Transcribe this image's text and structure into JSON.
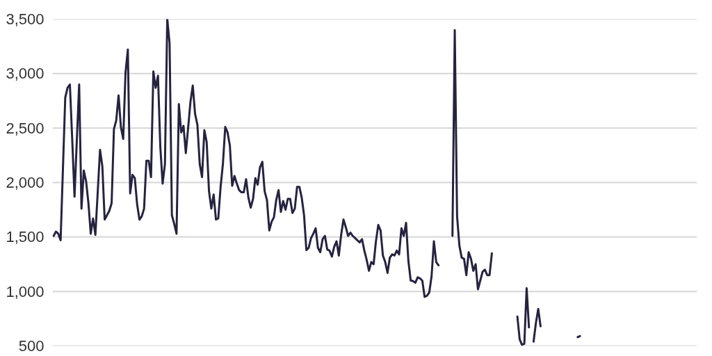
{
  "chart_data": {
    "type": "line",
    "categories": [
      null,
      null,
      null,
      null,
      null,
      null,
      null,
      null,
      null,
      null,
      null,
      null,
      null,
      null,
      null,
      null,
      null,
      null,
      null,
      null,
      null,
      null,
      null,
      null,
      null,
      null,
      null,
      null,
      null,
      null,
      null,
      null,
      null,
      null,
      null,
      null,
      null,
      null,
      null,
      null,
      null,
      null,
      null,
      null,
      null,
      null,
      null,
      null,
      null,
      null,
      null,
      null,
      null,
      null,
      null,
      null,
      null,
      null,
      null,
      null,
      null,
      null,
      null,
      null,
      null,
      null,
      null,
      null,
      null,
      null,
      null,
      null,
      null,
      null,
      null,
      null,
      null,
      null,
      null,
      null,
      null,
      null,
      null,
      null,
      null,
      null,
      null,
      null,
      null,
      null,
      null,
      null,
      null,
      null,
      null,
      null,
      null,
      null,
      null,
      null,
      null,
      null,
      null,
      null,
      null,
      null,
      null,
      null,
      null,
      null,
      null,
      null,
      null,
      null,
      null,
      null,
      null,
      null,
      null,
      null,
      null,
      null,
      null,
      null,
      null,
      null,
      null,
      null,
      null,
      null,
      null,
      null,
      null,
      null,
      null,
      null,
      null,
      null,
      null,
      null,
      null,
      null,
      null,
      null,
      null,
      null,
      null,
      null,
      null,
      null,
      null,
      null,
      null,
      null,
      null,
      null,
      null,
      null,
      null,
      null,
      null,
      null,
      null,
      null,
      null,
      null,
      null,
      null,
      null,
      null,
      null,
      null,
      null,
      null,
      null,
      null,
      null,
      null,
      null,
      null,
      null,
      null,
      null,
      null,
      null,
      null,
      null,
      null,
      null,
      null,
      null,
      null,
      null,
      null,
      null,
      null,
      null,
      null,
      null,
      null,
      null,
      null,
      null,
      null,
      null,
      null,
      null,
      null,
      null,
      null,
      null,
      null,
      null,
      null,
      null,
      null,
      null,
      null,
      null,
      null,
      null,
      null,
      null,
      null,
      null,
      null,
      null,
      null
    ],
    "series": [
      {
        "color": "#262340",
        "values": [
          1510,
          1550,
          1530,
          1470,
          2125,
          2780,
          2870,
          2900,
          2400,
          1870,
          2390,
          2900,
          1760,
          2110,
          2010,
          1810,
          1530,
          1670,
          1520,
          1910,
          2300,
          2150,
          1660,
          1700,
          1740,
          1810,
          2490,
          2570,
          2800,
          2510,
          2400,
          3010,
          3220,
          1900,
          2070,
          2040,
          1800,
          1660,
          1690,
          1760,
          2200,
          2200,
          2050,
          3020,
          2870,
          2980,
          2330,
          1990,
          2170,
          3500,
          3280,
          1700,
          1620,
          1530,
          2720,
          2460,
          2520,
          2270,
          2500,
          2740,
          2890,
          2630,
          2530,
          2170,
          2050,
          2480,
          2370,
          1920,
          1760,
          1890,
          1660,
          1670,
          1960,
          2170,
          2510,
          2460,
          2340,
          1970,
          2060,
          1990,
          1930,
          1910,
          1910,
          2030,
          1860,
          1770,
          1850,
          2040,
          1980,
          2140,
          2190,
          1920,
          1840,
          1560,
          1640,
          1680,
          1840,
          1930,
          1730,
          1830,
          1750,
          1850,
          1850,
          1720,
          1760,
          1960,
          1960,
          1860,
          1700,
          1380,
          1400,
          1490,
          1530,
          1580,
          1400,
          1360,
          1480,
          1510,
          1385,
          1375,
          1320,
          1410,
          1460,
          1330,
          1520,
          1660,
          1590,
          1510,
          1540,
          1510,
          1490,
          1470,
          1450,
          1480,
          1375,
          1290,
          1190,
          1270,
          1250,
          1460,
          1610,
          1560,
          1330,
          1270,
          1170,
          1310,
          1340,
          1330,
          1375,
          1340,
          1580,
          1510,
          1630,
          1280,
          1100,
          1095,
          1080,
          1130,
          1120,
          1100,
          950,
          960,
          990,
          1140,
          1460,
          1270,
          1240,
          null,
          null,
          null,
          null,
          null,
          null,
          null,
          null,
          null,
          null,
          null,
          null,
          null,
          null,
          null,
          null,
          null,
          null,
          null,
          null,
          null,
          null,
          null,
          null,
          null,
          null,
          null,
          null,
          null,
          null,
          null,
          null,
          null,
          null,
          null,
          null,
          null,
          null,
          null,
          null,
          null,
          null,
          null,
          null,
          null,
          null,
          null,
          null,
          null,
          null,
          null,
          null,
          null,
          null,
          null,
          null,
          null,
          null,
          null,
          null,
          null
        ]
      },
      {
        "color": "#262340",
        "values": [
          null,
          null,
          null,
          null,
          null,
          null,
          null,
          null,
          null,
          null,
          null,
          null,
          null,
          null,
          null,
          null,
          null,
          null,
          null,
          null,
          null,
          null,
          null,
          null,
          null,
          null,
          null,
          null,
          null,
          null,
          null,
          null,
          null,
          null,
          null,
          null,
          null,
          null,
          null,
          null,
          null,
          null,
          null,
          null,
          null,
          null,
          null,
          null,
          null,
          null,
          null,
          null,
          null,
          null,
          null,
          null,
          null,
          null,
          null,
          null,
          null,
          null,
          null,
          null,
          null,
          null,
          null,
          null,
          null,
          null,
          null,
          null,
          null,
          null,
          null,
          null,
          null,
          null,
          null,
          null,
          null,
          null,
          null,
          null,
          null,
          null,
          null,
          null,
          null,
          null,
          null,
          null,
          null,
          null,
          null,
          null,
          null,
          null,
          null,
          null,
          null,
          null,
          null,
          null,
          null,
          null,
          null,
          null,
          null,
          null,
          null,
          null,
          null,
          null,
          null,
          null,
          null,
          null,
          null,
          null,
          null,
          null,
          null,
          null,
          null,
          null,
          null,
          null,
          null,
          null,
          null,
          null,
          null,
          null,
          null,
          null,
          null,
          null,
          null,
          null,
          null,
          null,
          null,
          null,
          null,
          null,
          null,
          null,
          null,
          null,
          null,
          null,
          null,
          null,
          null,
          null,
          null,
          null,
          null,
          null,
          null,
          null,
          null,
          null,
          null,
          null,
          null,
          null,
          null,
          null,
          null,
          null,
          1510,
          3400,
          1690,
          1420,
          1310,
          1300,
          1150,
          1360,
          1300,
          1190,
          1250,
          1020,
          1100,
          1180,
          1200,
          1150,
          1150,
          1350,
          null,
          null,
          null,
          null,
          null,
          null,
          null,
          null,
          null,
          null,
          null,
          null,
          null,
          null,
          null,
          null,
          null,
          null,
          null,
          null,
          null,
          null,
          null,
          null,
          null,
          null,
          null,
          null,
          null,
          null,
          null,
          null,
          null,
          null,
          null,
          null,
          null,
          null
        ]
      },
      {
        "color": "#262340",
        "values": [
          null,
          null,
          null,
          null,
          null,
          null,
          null,
          null,
          null,
          null,
          null,
          null,
          null,
          null,
          null,
          null,
          null,
          null,
          null,
          null,
          null,
          null,
          null,
          null,
          null,
          null,
          null,
          null,
          null,
          null,
          null,
          null,
          null,
          null,
          null,
          null,
          null,
          null,
          null,
          null,
          null,
          null,
          null,
          null,
          null,
          null,
          null,
          null,
          null,
          null,
          null,
          null,
          null,
          null,
          null,
          null,
          null,
          null,
          null,
          null,
          null,
          null,
          null,
          null,
          null,
          null,
          null,
          null,
          null,
          null,
          null,
          null,
          null,
          null,
          null,
          null,
          null,
          null,
          null,
          null,
          null,
          null,
          null,
          null,
          null,
          null,
          null,
          null,
          null,
          null,
          null,
          null,
          null,
          null,
          null,
          null,
          null,
          null,
          null,
          null,
          null,
          null,
          null,
          null,
          null,
          null,
          null,
          null,
          null,
          null,
          null,
          null,
          null,
          null,
          null,
          null,
          null,
          null,
          null,
          null,
          null,
          null,
          null,
          null,
          null,
          null,
          null,
          null,
          null,
          null,
          null,
          null,
          null,
          null,
          null,
          null,
          null,
          null,
          null,
          null,
          null,
          null,
          null,
          null,
          null,
          null,
          null,
          null,
          null,
          null,
          null,
          null,
          null,
          null,
          null,
          null,
          null,
          null,
          null,
          null,
          null,
          null,
          null,
          null,
          null,
          null,
          null,
          null,
          null,
          null,
          null,
          null,
          null,
          null,
          null,
          null,
          null,
          null,
          null,
          null,
          null,
          null,
          null,
          null,
          null,
          null,
          null,
          null,
          null,
          null,
          null,
          null,
          null,
          null,
          null,
          null,
          null,
          null,
          null,
          null,
          770,
          560,
          510,
          520,
          1030,
          670,
          null,
          null,
          null,
          null,
          null,
          null,
          null,
          null,
          null,
          null,
          null,
          null,
          null,
          null,
          null,
          null,
          null,
          null,
          null,
          null,
          null,
          null
        ]
      },
      {
        "color": "#262340",
        "values": [
          null,
          null,
          null,
          null,
          null,
          null,
          null,
          null,
          null,
          null,
          null,
          null,
          null,
          null,
          null,
          null,
          null,
          null,
          null,
          null,
          null,
          null,
          null,
          null,
          null,
          null,
          null,
          null,
          null,
          null,
          null,
          null,
          null,
          null,
          null,
          null,
          null,
          null,
          null,
          null,
          null,
          null,
          null,
          null,
          null,
          null,
          null,
          null,
          null,
          null,
          null,
          null,
          null,
          null,
          null,
          null,
          null,
          null,
          null,
          null,
          null,
          null,
          null,
          null,
          null,
          null,
          null,
          null,
          null,
          null,
          null,
          null,
          null,
          null,
          null,
          null,
          null,
          null,
          null,
          null,
          null,
          null,
          null,
          null,
          null,
          null,
          null,
          null,
          null,
          null,
          null,
          null,
          null,
          null,
          null,
          null,
          null,
          null,
          null,
          null,
          null,
          null,
          null,
          null,
          null,
          null,
          null,
          null,
          null,
          null,
          null,
          null,
          null,
          null,
          null,
          null,
          null,
          null,
          null,
          null,
          null,
          null,
          null,
          null,
          null,
          null,
          null,
          null,
          null,
          null,
          null,
          null,
          null,
          null,
          null,
          null,
          null,
          null,
          null,
          null,
          null,
          null,
          null,
          null,
          null,
          null,
          null,
          null,
          null,
          null,
          null,
          null,
          null,
          null,
          null,
          null,
          null,
          null,
          null,
          null,
          null,
          null,
          null,
          null,
          null,
          null,
          null,
          null,
          null,
          null,
          null,
          null,
          null,
          null,
          null,
          null,
          null,
          null,
          null,
          null,
          null,
          null,
          null,
          null,
          null,
          null,
          null,
          null,
          null,
          null,
          null,
          null,
          null,
          null,
          null,
          null,
          null,
          null,
          null,
          null,
          null,
          null,
          null,
          null,
          null,
          null,
          null,
          540,
          710,
          840,
          680,
          null,
          null,
          null,
          null,
          null,
          null,
          null,
          null,
          null,
          null,
          null,
          null,
          null,
          null,
          null,
          null,
          null
        ]
      },
      {
        "color": "#262340",
        "values": [
          null,
          null,
          null,
          null,
          null,
          null,
          null,
          null,
          null,
          null,
          null,
          null,
          null,
          null,
          null,
          null,
          null,
          null,
          null,
          null,
          null,
          null,
          null,
          null,
          null,
          null,
          null,
          null,
          null,
          null,
          null,
          null,
          null,
          null,
          null,
          null,
          null,
          null,
          null,
          null,
          null,
          null,
          null,
          null,
          null,
          null,
          null,
          null,
          null,
          null,
          null,
          null,
          null,
          null,
          null,
          null,
          null,
          null,
          null,
          null,
          null,
          null,
          null,
          null,
          null,
          null,
          null,
          null,
          null,
          null,
          null,
          null,
          null,
          null,
          null,
          null,
          null,
          null,
          null,
          null,
          null,
          null,
          null,
          null,
          null,
          null,
          null,
          null,
          null,
          null,
          null,
          null,
          null,
          null,
          null,
          null,
          null,
          null,
          null,
          null,
          null,
          null,
          null,
          null,
          null,
          null,
          null,
          null,
          null,
          null,
          null,
          null,
          null,
          null,
          null,
          null,
          null,
          null,
          null,
          null,
          null,
          null,
          null,
          null,
          null,
          null,
          null,
          null,
          null,
          null,
          null,
          null,
          null,
          null,
          null,
          null,
          null,
          null,
          null,
          null,
          null,
          null,
          null,
          null,
          null,
          null,
          null,
          null,
          null,
          null,
          null,
          null,
          null,
          null,
          null,
          null,
          null,
          null,
          null,
          null,
          null,
          null,
          null,
          null,
          null,
          null,
          null,
          null,
          null,
          null,
          null,
          null,
          null,
          null,
          null,
          null,
          null,
          null,
          null,
          null,
          null,
          null,
          null,
          null,
          null,
          null,
          null,
          null,
          null,
          null,
          null,
          null,
          null,
          null,
          null,
          null,
          null,
          null,
          null,
          null,
          null,
          null,
          null,
          null,
          null,
          null,
          null,
          null,
          null,
          null,
          null,
          null,
          null,
          null,
          null,
          null,
          null,
          null,
          null,
          null,
          null,
          null,
          null,
          null,
          null,
          null,
          580,
          590
        ]
      }
    ],
    "ylim": [
      500,
      3500
    ],
    "yticks": [
      500,
      {
        "value": 1000,
        "label": "1,000"
      },
      {
        "value": 1500,
        "label": "1,500"
      },
      {
        "value": 2000,
        "label": "2,000"
      },
      {
        "value": 2500,
        "label": "2,500"
      },
      {
        "value": 3000,
        "label": "3,000"
      },
      {
        "value": 3500,
        "label": "3,500"
      }
    ],
    "grid": "y",
    "tick_labels": "y"
  }
}
